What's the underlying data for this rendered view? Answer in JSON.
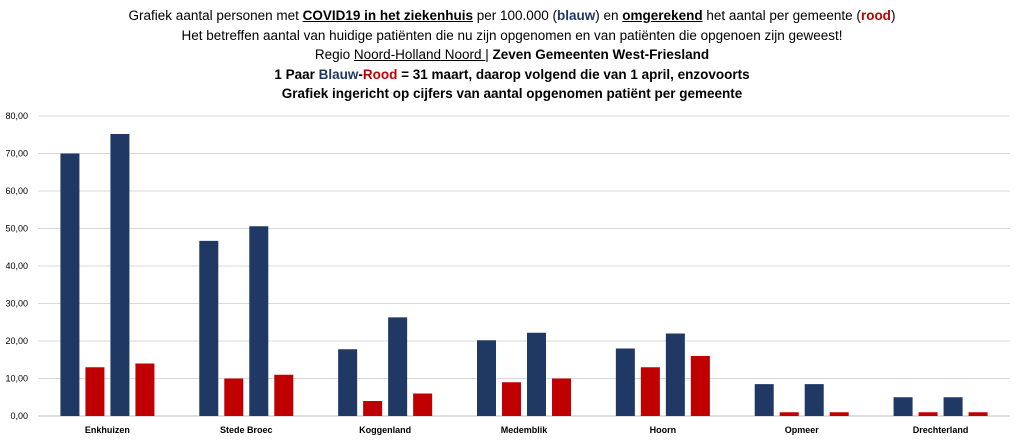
{
  "title": {
    "line1": {
      "a": "Grafiek aantal personen met ",
      "b": "COVID19 in het ziekenhuis",
      "c": " per 100.000 (",
      "d": "blauw",
      "e": ") en ",
      "f": "omgerekend",
      "g": " het aantal per gemeente (",
      "h": "rood",
      "i": ")"
    },
    "line2": "Het betreffen aantal van huidige patiënten die nu zijn opgenomen en van patiënten die opgenoen zijn geweest!",
    "line3": {
      "a": "Regio ",
      "b": "Noord-Holland Noord ",
      "c": "| ",
      "d": "Zeven Gemeenten West-Friesland"
    },
    "line4": {
      "a": "1 Paar ",
      "b": "Blauw",
      "c": "-",
      "d": "Rood",
      "e": " = 31 maart, daarop volgend die van 1 april, enzovoorts"
    },
    "line5": "Grafiek ingericht op cijfers van aantal opgenomen patiënt per gemeente"
  },
  "chart_data": {
    "type": "bar",
    "categories": [
      "Enkhuizen",
      "Stede Broec",
      "Koggenland",
      "Medemblik",
      "Hoorn",
      "Opmeer",
      "Drechterland"
    ],
    "series": [
      {
        "color": "#1f3864",
        "values": [
          70,
          46.7,
          17.8,
          20.2,
          18,
          8.5,
          5
        ]
      },
      {
        "color": "#c00000",
        "values": [
          13,
          10,
          4,
          9,
          13,
          1,
          1
        ]
      },
      {
        "color": "#1f3864",
        "values": [
          75.2,
          50.6,
          26.3,
          22.2,
          22,
          8.5,
          5
        ]
      },
      {
        "color": "#c00000",
        "values": [
          14,
          11,
          6,
          10,
          16,
          1,
          1
        ]
      }
    ],
    "ylim": [
      0,
      80
    ],
    "yticks": [
      "0,00",
      "10,00",
      "20,00",
      "30,00",
      "40,00",
      "50,00",
      "60,00",
      "70,00",
      "80,00"
    ],
    "grid": true,
    "legend": "none"
  }
}
